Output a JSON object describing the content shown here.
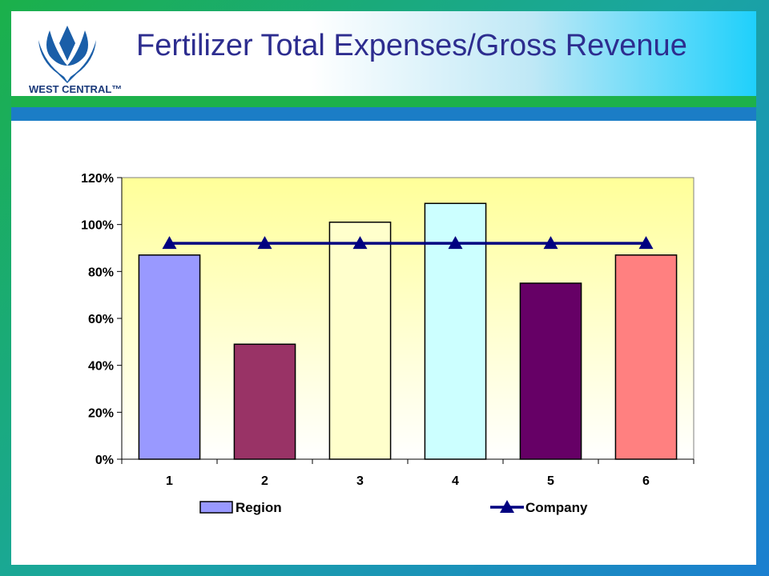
{
  "logo": {
    "name": "west-central-logo",
    "wordmark": "WEST CENTRAL™",
    "colors": [
      "#1a5ea8",
      "#ffffff"
    ]
  },
  "title": "Fertilizer Total Expenses/Gross Revenue",
  "theme": {
    "green": "#1db14b",
    "blue": "#1b7dc6",
    "title_color": "#2d2d8f",
    "plot_bg_top": "#ffff99",
    "plot_bg_bottom": "#ffffff"
  },
  "chart_data": {
    "type": "bar",
    "categories": [
      "1",
      "2",
      "3",
      "4",
      "5",
      "6"
    ],
    "series": [
      {
        "name": "Region",
        "type": "bar",
        "values": [
          0.87,
          0.49,
          1.01,
          1.09,
          0.75,
          0.87
        ],
        "colors": [
          "#9999ff",
          "#993366",
          "#ffffcc",
          "#ccffff",
          "#660066",
          "#ff8080"
        ]
      },
      {
        "name": "Company",
        "type": "line",
        "marker": "triangle",
        "values": [
          0.92,
          0.92,
          0.92,
          0.92,
          0.92,
          0.92
        ],
        "color": "#000080"
      }
    ],
    "yticks": [
      "0%",
      "20%",
      "40%",
      "60%",
      "80%",
      "100%",
      "120%"
    ],
    "ylim": [
      0,
      1.2
    ],
    "grid": false,
    "legend_position": "bottom",
    "legend": [
      "Region",
      "Company"
    ]
  }
}
